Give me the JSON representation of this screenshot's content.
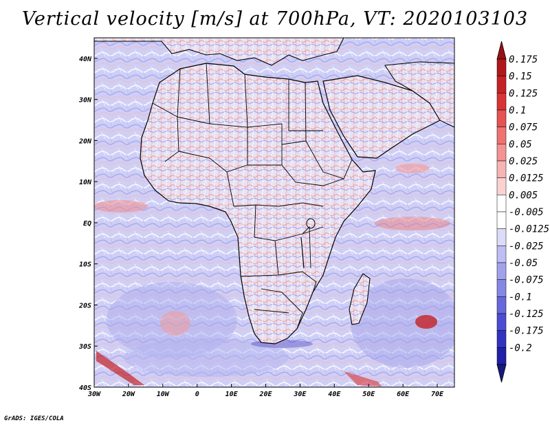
{
  "title": "Vertical velocity [m/s] at 700hPa, VT: 2020103103",
  "credit": "GrADS: IGES/COLA",
  "map": {
    "lon_range": [
      -30,
      75
    ],
    "lat_range": [
      -40,
      45
    ],
    "x_ticks": [
      {
        "lon": -30,
        "label": "30W"
      },
      {
        "lon": -20,
        "label": "20W"
      },
      {
        "lon": -10,
        "label": "10W"
      },
      {
        "lon": 0,
        "label": "0"
      },
      {
        "lon": 10,
        "label": "10E"
      },
      {
        "lon": 20,
        "label": "20E"
      },
      {
        "lon": 30,
        "label": "30E"
      },
      {
        "lon": 40,
        "label": "40E"
      },
      {
        "lon": 50,
        "label": "50E"
      },
      {
        "lon": 60,
        "label": "60E"
      },
      {
        "lon": 70,
        "label": "70E"
      }
    ],
    "y_ticks": [
      {
        "lat": 40,
        "label": "40N"
      },
      {
        "lat": 30,
        "label": "30N"
      },
      {
        "lat": 20,
        "label": "20N"
      },
      {
        "lat": 10,
        "label": "10N"
      },
      {
        "lat": 0,
        "label": "EQ"
      },
      {
        "lat": -10,
        "label": "10S"
      },
      {
        "lat": -20,
        "label": "20S"
      },
      {
        "lat": -30,
        "label": "30S"
      },
      {
        "lat": -40,
        "label": "40S"
      }
    ]
  },
  "colorbar": {
    "levels": [
      {
        "label": "0.175",
        "color": "#b0181c"
      },
      {
        "label": "0.15",
        "color": "#c42226"
      },
      {
        "label": "0.125",
        "color": "#d83434"
      },
      {
        "label": "0.1",
        "color": "#e55353"
      },
      {
        "label": "0.075",
        "color": "#ee7272"
      },
      {
        "label": "0.05",
        "color": "#f39393"
      },
      {
        "label": "0.025",
        "color": "#f7b4b4"
      },
      {
        "label": "0.0125",
        "color": "#fbd2d2"
      },
      {
        "label": "0.005",
        "color": "#ffffff"
      },
      {
        "label": "-0.005",
        "color": "#ffffff"
      },
      {
        "label": "-0.0125",
        "color": "#dcdcf8"
      },
      {
        "label": "-0.025",
        "color": "#bebef3"
      },
      {
        "label": "-0.05",
        "color": "#a2a2ec"
      },
      {
        "label": "-0.075",
        "color": "#8686e4"
      },
      {
        "label": "-0.1",
        "color": "#6868dc"
      },
      {
        "label": "-0.125",
        "color": "#4c4cd2"
      },
      {
        "label": "-0.175",
        "color": "#3232c0"
      },
      {
        "label": "-0.2",
        "color": "#2020a8"
      }
    ],
    "top_arrow_color": "#9a1014",
    "bottom_arrow_color": "#18187e"
  },
  "colors": {
    "background_field": "#c8c8f4",
    "positive_accent": "#e05050",
    "negative_accent": "#6e6ee2",
    "coastline": "#000000"
  }
}
